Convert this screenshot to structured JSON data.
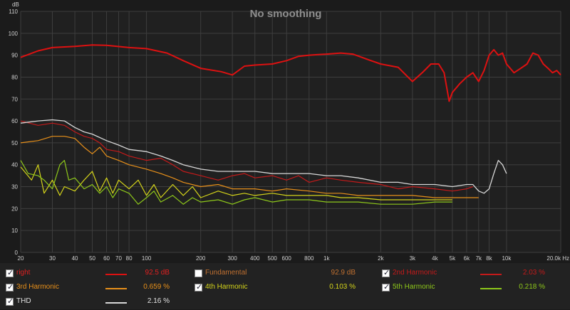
{
  "chart_data": {
    "type": "line",
    "title": "No smoothing",
    "ylabel": "dB",
    "xlabel": "",
    "xscale": "log",
    "xlim": [
      20,
      20000
    ],
    "ylim": [
      0,
      110
    ],
    "grid": true,
    "x_ticks": [
      20,
      30,
      40,
      50,
      60,
      70,
      80,
      100,
      200,
      300,
      400,
      500,
      600,
      800,
      1000,
      2000,
      3000,
      4000,
      5000,
      6000,
      7000,
      8000,
      10000,
      20000
    ],
    "x_tick_labels": [
      "20",
      "30",
      "40",
      "50",
      "60",
      "70",
      "80",
      "100",
      "200",
      "300",
      "400",
      "500",
      "600",
      "800",
      "1k",
      "2k",
      "3k",
      "4k",
      "5k",
      "6k",
      "7k",
      "8k",
      "10k",
      "20.0k Hz"
    ],
    "y_ticks": [
      0,
      10,
      20,
      30,
      40,
      50,
      60,
      70,
      80,
      90,
      100,
      110
    ],
    "series": [
      {
        "name": "right",
        "color": "#dd1111",
        "width": 2,
        "points": [
          [
            20,
            89
          ],
          [
            25,
            92
          ],
          [
            30,
            93.5
          ],
          [
            40,
            94
          ],
          [
            50,
            94.7
          ],
          [
            60,
            94.5
          ],
          [
            80,
            93.5
          ],
          [
            100,
            93
          ],
          [
            130,
            91
          ],
          [
            160,
            87.5
          ],
          [
            200,
            84
          ],
          [
            260,
            82.5
          ],
          [
            300,
            81
          ],
          [
            350,
            85
          ],
          [
            400,
            85.5
          ],
          [
            500,
            86
          ],
          [
            600,
            87.5
          ],
          [
            700,
            89.5
          ],
          [
            800,
            90
          ],
          [
            900,
            90.3
          ],
          [
            1000,
            90.5
          ],
          [
            1200,
            91
          ],
          [
            1400,
            90.5
          ],
          [
            1700,
            88
          ],
          [
            2000,
            86
          ],
          [
            2500,
            84.5
          ],
          [
            3000,
            78
          ],
          [
            3400,
            82
          ],
          [
            3800,
            86
          ],
          [
            4200,
            86
          ],
          [
            4500,
            82
          ],
          [
            4800,
            69
          ],
          [
            5000,
            73
          ],
          [
            5500,
            77
          ],
          [
            6000,
            80
          ],
          [
            6500,
            82
          ],
          [
            7000,
            78
          ],
          [
            7500,
            83
          ],
          [
            8000,
            90
          ],
          [
            8500,
            92.5
          ],
          [
            9000,
            90
          ],
          [
            9500,
            91
          ],
          [
            10000,
            86
          ],
          [
            11000,
            82
          ],
          [
            12000,
            84
          ],
          [
            13000,
            86
          ],
          [
            14000,
            91
          ],
          [
            15000,
            90
          ],
          [
            16000,
            86
          ],
          [
            17000,
            84
          ],
          [
            18000,
            82
          ],
          [
            19000,
            83
          ],
          [
            20000,
            81
          ]
        ]
      },
      {
        "name": "2nd Harmonic",
        "color": "#c41a1a",
        "width": 1.2,
        "points": [
          [
            20,
            60
          ],
          [
            25,
            58
          ],
          [
            30,
            59
          ],
          [
            35,
            58
          ],
          [
            40,
            55
          ],
          [
            45,
            53
          ],
          [
            50,
            52
          ],
          [
            55,
            50
          ],
          [
            60,
            47
          ],
          [
            70,
            46
          ],
          [
            80,
            44
          ],
          [
            100,
            42
          ],
          [
            120,
            43
          ],
          [
            140,
            40
          ],
          [
            160,
            37
          ],
          [
            200,
            35
          ],
          [
            250,
            33
          ],
          [
            300,
            35
          ],
          [
            350,
            36
          ],
          [
            400,
            34
          ],
          [
            500,
            35
          ],
          [
            600,
            33
          ],
          [
            700,
            35
          ],
          [
            800,
            32
          ],
          [
            1000,
            34
          ],
          [
            1200,
            33
          ],
          [
            1500,
            32
          ],
          [
            2000,
            31
          ],
          [
            2500,
            29
          ],
          [
            3000,
            30
          ],
          [
            4000,
            29
          ],
          [
            5000,
            28
          ],
          [
            6000,
            29
          ],
          [
            6500,
            30
          ]
        ]
      },
      {
        "name": "3rd Harmonic",
        "color": "#e8901a",
        "width": 1.2,
        "points": [
          [
            20,
            50
          ],
          [
            25,
            51
          ],
          [
            30,
            53
          ],
          [
            35,
            53
          ],
          [
            40,
            52
          ],
          [
            45,
            48
          ],
          [
            50,
            45
          ],
          [
            55,
            48
          ],
          [
            60,
            44
          ],
          [
            70,
            42
          ],
          [
            80,
            40
          ],
          [
            100,
            38
          ],
          [
            120,
            36
          ],
          [
            140,
            34
          ],
          [
            160,
            32
          ],
          [
            200,
            30
          ],
          [
            250,
            31
          ],
          [
            300,
            29
          ],
          [
            400,
            29
          ],
          [
            500,
            28
          ],
          [
            600,
            29
          ],
          [
            800,
            28
          ],
          [
            1000,
            27
          ],
          [
            1200,
            27
          ],
          [
            1500,
            26
          ],
          [
            2000,
            26
          ],
          [
            2500,
            26
          ],
          [
            3000,
            26
          ],
          [
            4000,
            25
          ],
          [
            5000,
            25
          ],
          [
            6000,
            25
          ],
          [
            7000,
            25
          ]
        ]
      },
      {
        "name": "4th Harmonic",
        "color": "#d4d41a",
        "width": 1.2,
        "points": [
          [
            20,
            39
          ],
          [
            23,
            33
          ],
          [
            25,
            40
          ],
          [
            27,
            27
          ],
          [
            30,
            33
          ],
          [
            33,
            26
          ],
          [
            35,
            30
          ],
          [
            40,
            28
          ],
          [
            45,
            33
          ],
          [
            50,
            37
          ],
          [
            55,
            28
          ],
          [
            60,
            34
          ],
          [
            65,
            27
          ],
          [
            70,
            33
          ],
          [
            80,
            29
          ],
          [
            90,
            33
          ],
          [
            100,
            26
          ],
          [
            110,
            31
          ],
          [
            120,
            25
          ],
          [
            140,
            31
          ],
          [
            160,
            26
          ],
          [
            180,
            30
          ],
          [
            200,
            25
          ],
          [
            250,
            28
          ],
          [
            300,
            26
          ],
          [
            350,
            27
          ],
          [
            400,
            26
          ],
          [
            500,
            27
          ],
          [
            600,
            26
          ],
          [
            700,
            26
          ],
          [
            800,
            26
          ],
          [
            1000,
            26
          ],
          [
            1200,
            25
          ],
          [
            1500,
            25
          ],
          [
            2000,
            24
          ],
          [
            2500,
            24
          ],
          [
            3000,
            24
          ],
          [
            4000,
            24
          ],
          [
            5000,
            24
          ]
        ]
      },
      {
        "name": "5th Harmonic",
        "color": "#8ec81a",
        "width": 1.2,
        "points": [
          [
            20,
            42
          ],
          [
            22,
            36
          ],
          [
            25,
            35
          ],
          [
            27,
            33
          ],
          [
            30,
            29
          ],
          [
            33,
            40
          ],
          [
            35,
            42
          ],
          [
            37,
            33
          ],
          [
            40,
            34
          ],
          [
            45,
            29
          ],
          [
            50,
            31
          ],
          [
            55,
            27
          ],
          [
            60,
            30
          ],
          [
            65,
            25
          ],
          [
            70,
            29
          ],
          [
            80,
            27
          ],
          [
            90,
            22
          ],
          [
            100,
            25
          ],
          [
            110,
            28
          ],
          [
            120,
            23
          ],
          [
            140,
            26
          ],
          [
            160,
            22
          ],
          [
            180,
            25
          ],
          [
            200,
            23
          ],
          [
            250,
            24
          ],
          [
            300,
            22
          ],
          [
            350,
            24
          ],
          [
            400,
            25
          ],
          [
            500,
            23
          ],
          [
            600,
            24
          ],
          [
            800,
            24
          ],
          [
            1000,
            23
          ],
          [
            1200,
            23
          ],
          [
            1500,
            23
          ],
          [
            2000,
            22
          ],
          [
            2500,
            22
          ],
          [
            3000,
            22
          ],
          [
            4000,
            23
          ],
          [
            5000,
            23
          ]
        ]
      },
      {
        "name": "THD",
        "color": "#d8d8d8",
        "width": 1.3,
        "points": [
          [
            20,
            59
          ],
          [
            25,
            60
          ],
          [
            30,
            60.5
          ],
          [
            35,
            60
          ],
          [
            40,
            57
          ],
          [
            45,
            55
          ],
          [
            50,
            54
          ],
          [
            60,
            51
          ],
          [
            70,
            49
          ],
          [
            80,
            47
          ],
          [
            100,
            46
          ],
          [
            120,
            44
          ],
          [
            140,
            42
          ],
          [
            160,
            40
          ],
          [
            200,
            38
          ],
          [
            250,
            37
          ],
          [
            300,
            37
          ],
          [
            400,
            37
          ],
          [
            500,
            36
          ],
          [
            600,
            36
          ],
          [
            800,
            36
          ],
          [
            1000,
            35
          ],
          [
            1200,
            35
          ],
          [
            1500,
            34
          ],
          [
            2000,
            32
          ],
          [
            2500,
            32
          ],
          [
            3000,
            31
          ],
          [
            4000,
            31
          ],
          [
            5000,
            30
          ],
          [
            6000,
            31
          ],
          [
            6500,
            31
          ],
          [
            7000,
            28
          ],
          [
            7500,
            27
          ],
          [
            8000,
            29
          ],
          [
            8500,
            36
          ],
          [
            9000,
            42
          ],
          [
            9500,
            40
          ],
          [
            10000,
            36
          ]
        ]
      }
    ]
  },
  "legend": [
    {
      "name": "right",
      "checked": true,
      "value": "92.5 dB",
      "text_color": "#e02020",
      "value_color": "#e02020",
      "line_color": "#dd1111"
    },
    {
      "name": "Fundamental",
      "checked": false,
      "value": "92.9 dB",
      "text_color": "#c07030",
      "value_color": "#c07030",
      "line_color": ""
    },
    {
      "name": "2nd Harmonic",
      "checked": true,
      "value": "2.03 %",
      "text_color": "#c41a1a",
      "value_color": "#c41a1a",
      "line_color": "#c41a1a"
    },
    {
      "name": "3rd Harmonic",
      "checked": true,
      "value": "0.659 %",
      "text_color": "#e8901a",
      "value_color": "#e8901a",
      "line_color": "#e8901a"
    },
    {
      "name": "4th Harmonic",
      "checked": true,
      "value": "0.103 %",
      "text_color": "#d4d41a",
      "value_color": "#d4d41a",
      "line_color": "#d4d41a"
    },
    {
      "name": "5th Harmonic",
      "checked": true,
      "value": "0.218 %",
      "text_color": "#8ec81a",
      "value_color": "#8ec81a",
      "line_color": "#8ec81a"
    },
    {
      "name": "THD",
      "checked": true,
      "value": "2.16 %",
      "text_color": "#e0e0e0",
      "value_color": "#e0e0e0",
      "line_color": "#d8d8d8"
    }
  ]
}
